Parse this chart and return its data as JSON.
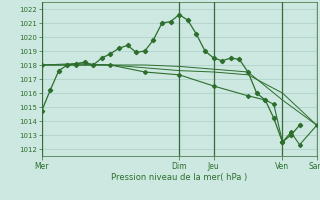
{
  "background_color": "#cce8e0",
  "grid_color": "#aacfc8",
  "line_color": "#2d6e2d",
  "text_color": "#2d6e2d",
  "xlabel_text": "Pression niveau de la mer( hPa )",
  "ylim": [
    1011.5,
    1022.5
  ],
  "yticks": [
    1012,
    1013,
    1014,
    1015,
    1016,
    1017,
    1018,
    1019,
    1020,
    1021,
    1022
  ],
  "xlim": [
    0,
    168
  ],
  "day_lines": [
    24,
    96,
    120,
    168
  ],
  "day_tick_pos": [
    0,
    96,
    120,
    168,
    216
  ],
  "day_labels": [
    "Mer",
    "Dim",
    "Jeu",
    "Ven",
    "Sam"
  ],
  "day_label_hours": [
    0,
    96,
    120,
    168,
    216
  ],
  "series1_x": [
    0,
    6,
    12,
    18,
    24,
    30,
    36,
    42,
    48,
    54,
    60,
    66,
    72,
    78,
    84,
    90,
    96,
    102,
    108,
    114,
    120,
    126,
    132,
    138,
    144,
    150,
    156,
    162,
    168,
    174,
    180
  ],
  "series1_y": [
    1014.7,
    1016.2,
    1017.6,
    1018.0,
    1018.1,
    1018.2,
    1018.0,
    1018.5,
    1018.8,
    1019.2,
    1019.4,
    1018.9,
    1019.0,
    1019.8,
    1021.0,
    1021.1,
    1021.6,
    1021.2,
    1020.2,
    1019.0,
    1018.5,
    1018.3,
    1018.5,
    1018.4,
    1017.5,
    1016.0,
    1015.5,
    1014.2,
    1012.5,
    1013.0,
    1013.7
  ],
  "series2_x": [
    0,
    24,
    48,
    72,
    96,
    120,
    144,
    168,
    192
  ],
  "series2_y": [
    1018.0,
    1018.1,
    1018.0,
    1018.0,
    1017.9,
    1017.7,
    1017.5,
    1015.5,
    1013.7
  ],
  "series3_x": [
    0,
    24,
    48,
    72,
    96,
    120,
    144,
    168,
    192
  ],
  "series3_y": [
    1018.0,
    1018.0,
    1018.0,
    1017.8,
    1017.6,
    1017.5,
    1017.3,
    1016.0,
    1013.7
  ],
  "series4_x": [
    0,
    24,
    48,
    72,
    96,
    120,
    144,
    156,
    162,
    168,
    174,
    180,
    192
  ],
  "series4_y": [
    1018.0,
    1018.0,
    1018.0,
    1017.5,
    1017.3,
    1016.5,
    1015.8,
    1015.5,
    1015.2,
    1012.5,
    1013.2,
    1012.3,
    1013.7
  ]
}
